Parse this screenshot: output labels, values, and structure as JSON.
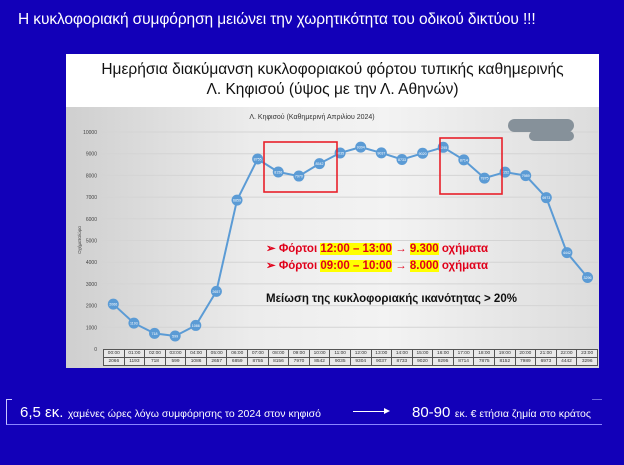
{
  "headline": "Η κυκλοφοριακή συμφόρηση μειώνει την χωρητικότητα του οδικού δικτύου !!!",
  "frame": {
    "title_line1": "Ημερήσια διακύμανση κυκλοφοριακού φόρτου τυπικής καθημερινής",
    "title_line2": "Λ. Κηφισού (ύψος με την Λ. Αθηνών)"
  },
  "chart_data": {
    "type": "line",
    "title": "Λ. Κηφισού (Καθημερινή Απριλίου 2024)",
    "xlabel": "",
    "ylabel": "Οχήματα/ώρα",
    "ylim": [
      0,
      10000
    ],
    "yticks": [
      0,
      1000,
      2000,
      3000,
      4000,
      5000,
      6000,
      7000,
      8000,
      9000,
      10000
    ],
    "grid": true,
    "legend": "none",
    "categories": [
      "00:00",
      "01:00",
      "02:00",
      "03:00",
      "04:00",
      "05:00",
      "06:00",
      "07:00",
      "08:00",
      "09:00",
      "10:00",
      "11:00",
      "12:00",
      "13:00",
      "14:00",
      "15:00",
      "16:00",
      "17:00",
      "18:00",
      "19:00",
      "20:00",
      "21:00",
      "22:00",
      "23:00"
    ],
    "series": [
      {
        "name": "Λ. Κηφισού",
        "color": "#5b9bd5",
        "values": [
          2066,
          1193,
          718,
          599,
          1086,
          2657,
          6859,
          8755,
          8156,
          7970,
          8542,
          9035,
          9304,
          9037,
          8733,
          9020,
          9295,
          8714,
          7875,
          8152,
          7989,
          6973,
          4442,
          3296
        ]
      }
    ],
    "highlight_boxes": [
      {
        "from": "08:00",
        "to": "10:00",
        "color": "#e8202a"
      },
      {
        "from": "16:00",
        "to": "18:00",
        "color": "#e8202a"
      }
    ],
    "annotations": [
      {
        "prefix": "Φόρτοι",
        "time": "12:00 – 13:00",
        "value": "9.300",
        "suffix": "οχήματα"
      },
      {
        "prefix": "Φόρτοι",
        "time": "09:00 – 10:00",
        "value": "8.000",
        "suffix": "οχήματα"
      }
    ],
    "conclusion": "Μείωση της κυκλοφοριακής ικανότητας > 20%"
  },
  "footer": {
    "left_big": "6,5 εκ.",
    "left_small": "χαμένες ώρες λόγω συμφόρησης το 2024 στον κηφισό",
    "right_big": "80-90",
    "right_small": "εκ. € ετήσια ζημία στο κράτος"
  },
  "icons": {
    "bullet": "➢",
    "arrow": "→"
  },
  "colors": {
    "background": "#1200b8",
    "line": "#5b9bd5",
    "highlight_box": "#e8202a",
    "annotation_text": "#e0001a",
    "annotation_highlight": "#ffff00"
  }
}
